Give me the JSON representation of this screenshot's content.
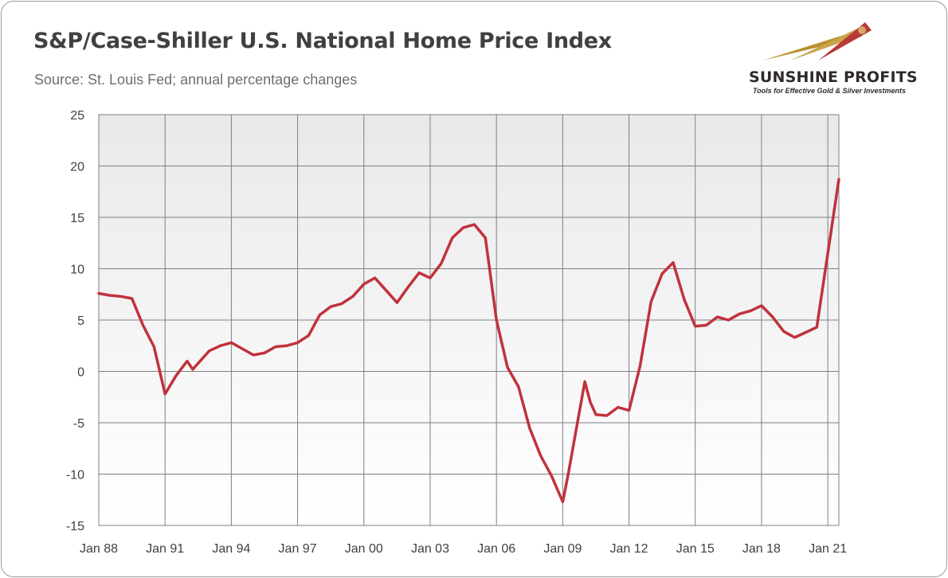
{
  "header": {
    "title": "S&P/Case-Shiller U.S. National Home Price Index",
    "subtitle": "Source: St. Louis Fed; annual percentage changes"
  },
  "logo": {
    "name": "SUNSHINE PROFITS",
    "tagline": "Tools for Effective Gold & Silver Investments"
  },
  "colors": {
    "line": "#c0323d",
    "grid": "#7f7f7f",
    "text": "#404040"
  },
  "chart_data": {
    "type": "line",
    "title": "S&P/Case-Shiller U.S. National Home Price Index",
    "subtitle": "Source: St. Louis Fed; annual percentage changes",
    "xlabel": "",
    "ylabel": "",
    "ylim": [
      -15,
      25
    ],
    "xlim": [
      "1988-01",
      "2021-07"
    ],
    "y_ticks": [
      "25",
      "20",
      "15",
      "10",
      "5",
      "0",
      "-5",
      "-10",
      "-15"
    ],
    "x_ticks": [
      "Jan 88",
      "Jan 91",
      "Jan 94",
      "Jan 97",
      "Jan 00",
      "Jan 03",
      "Jan 06",
      "Jan 09",
      "Jan 12",
      "Jan 15",
      "Jan 18",
      "Jan 21"
    ],
    "grid": true,
    "series": [
      {
        "x": [
          "1988-01",
          "1988-07",
          "1989-01",
          "1989-07",
          "1990-01",
          "1990-07",
          "1991-01",
          "1991-07",
          "1992-01",
          "1992-04",
          "1992-07",
          "1993-01",
          "1993-07",
          "1994-01",
          "1994-07",
          "1995-01",
          "1995-07",
          "1996-01",
          "1996-07",
          "1997-01",
          "1997-07",
          "1998-01",
          "1998-07",
          "1999-01",
          "1999-07",
          "2000-01",
          "2000-07",
          "2001-01",
          "2001-07",
          "2002-01",
          "2002-07",
          "2003-01",
          "2003-07",
          "2004-01",
          "2004-07",
          "2005-01",
          "2005-07",
          "2006-01",
          "2006-07",
          "2007-01",
          "2007-07",
          "2008-01",
          "2008-07",
          "2009-01",
          "2009-04",
          "2009-07",
          "2010-01",
          "2010-04",
          "2010-07",
          "2011-01",
          "2011-07",
          "2012-01",
          "2012-07",
          "2013-01",
          "2013-07",
          "2014-01",
          "2014-07",
          "2015-01",
          "2015-07",
          "2016-01",
          "2016-07",
          "2017-01",
          "2017-07",
          "2018-01",
          "2018-07",
          "2019-01",
          "2019-07",
          "2020-01",
          "2020-07",
          "2021-01",
          "2021-07"
        ],
        "values": [
          7.6,
          7.4,
          7.3,
          7.1,
          4.5,
          2.4,
          -2.2,
          -0.4,
          1.0,
          0.2,
          0.8,
          2.0,
          2.5,
          2.8,
          2.2,
          1.6,
          1.8,
          2.4,
          2.5,
          2.8,
          3.5,
          5.5,
          6.3,
          6.6,
          7.3,
          8.5,
          9.1,
          7.9,
          6.7,
          8.2,
          9.6,
          9.1,
          10.5,
          13.0,
          14.0,
          14.3,
          13.0,
          5.0,
          0.4,
          -1.5,
          -5.5,
          -8.2,
          -10.2,
          -12.7,
          -10.0,
          -7.0,
          -1.0,
          -3.0,
          -4.2,
          -4.3,
          -3.5,
          -3.8,
          0.5,
          6.8,
          9.5,
          10.6,
          7.0,
          4.4,
          4.5,
          5.3,
          5.0,
          5.6,
          5.9,
          6.4,
          5.3,
          3.9,
          3.3,
          3.8,
          4.3,
          11.5,
          18.7
        ]
      }
    ]
  }
}
